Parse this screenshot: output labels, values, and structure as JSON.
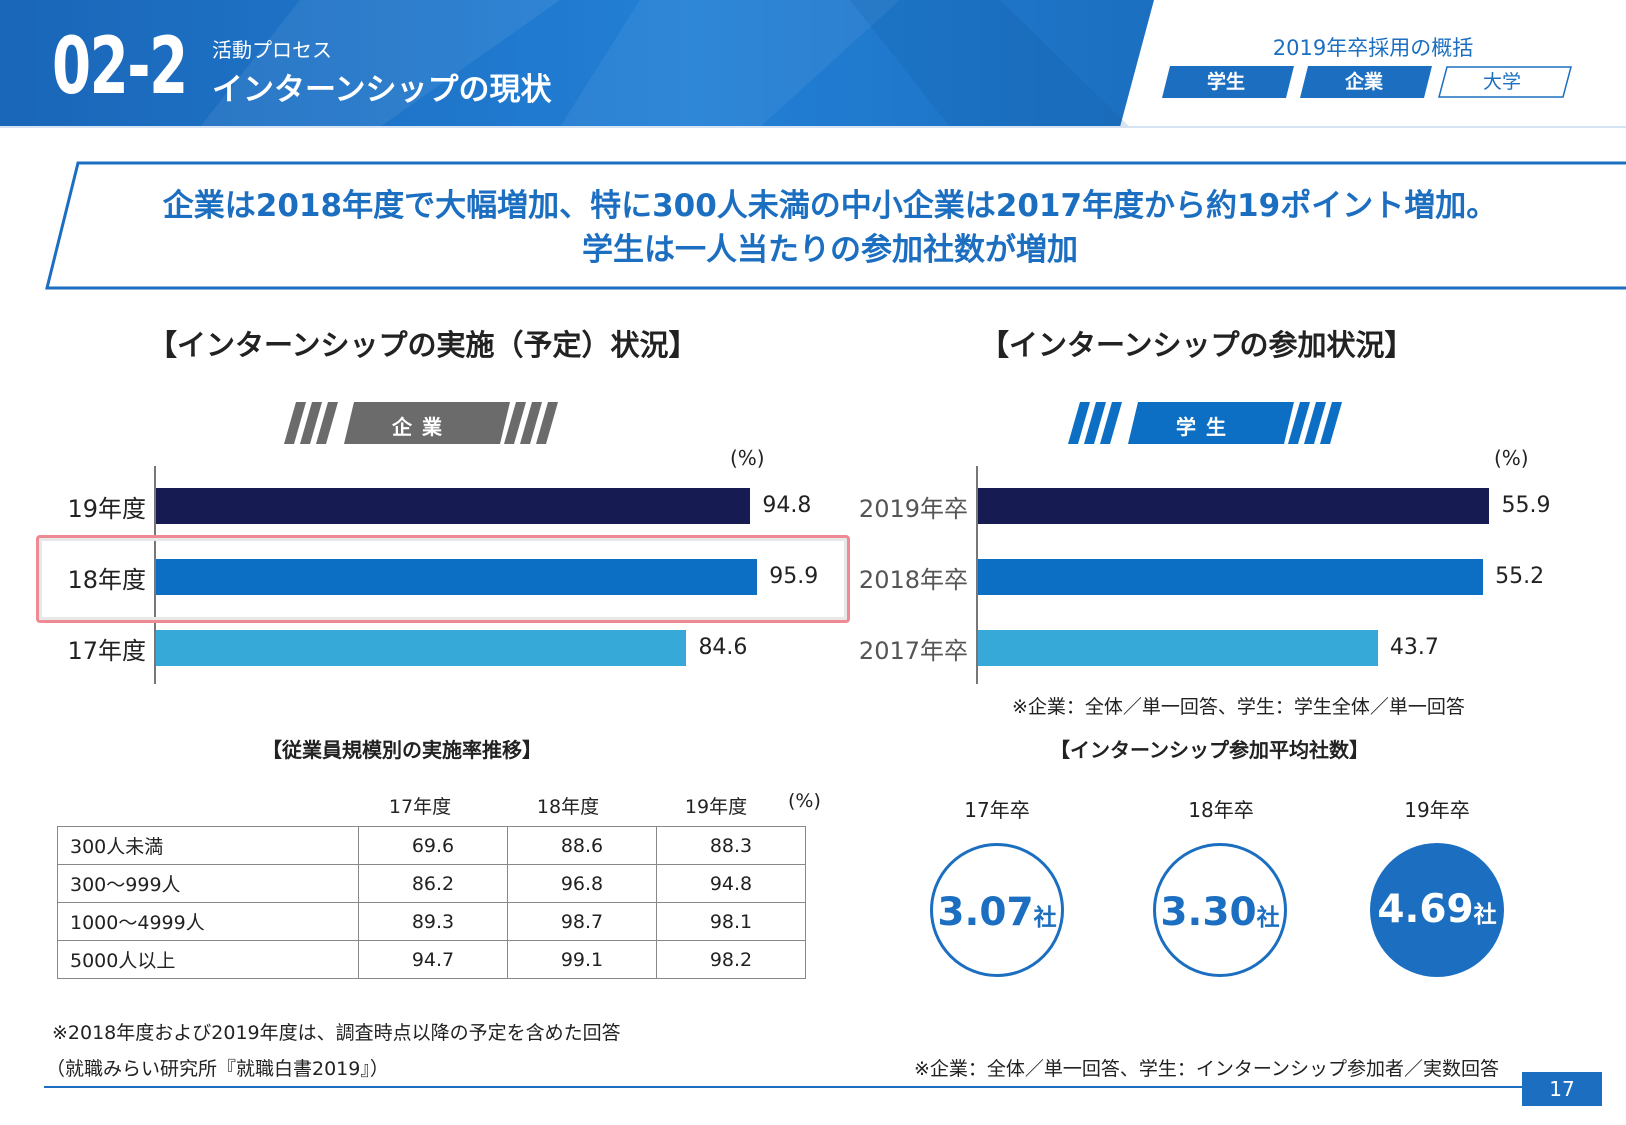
{
  "header": {
    "section_number": "02-2",
    "section_category": "活動プロセス",
    "section_title": "インターンシップの現状",
    "overview_title": "2019年卒採用の概括",
    "tabs": [
      {
        "label": "学生",
        "active": true
      },
      {
        "label": "企業",
        "active": true
      },
      {
        "label": "大学",
        "active": false
      }
    ]
  },
  "headline": {
    "line1": "企業は2018年度で大幅増加、特に300人未満の中小企業は2017年度から約19ポイント増加。",
    "line2": "学生は一人当たりの参加社数が増加"
  },
  "colors": {
    "brand": "#1c6fc0",
    "dark_navy": "#161c52",
    "mid_blue": "#0d6fc4",
    "light_blue": "#36a9d9",
    "highlight": "#ee8a94",
    "badge_gray": "#6b6b6b"
  },
  "chart_data": [
    {
      "type": "bar",
      "orientation": "horizontal",
      "title": "【インターンシップの実施（予定）状況】",
      "badge": "企業",
      "unit": "(%)",
      "categories": [
        "19年度",
        "18年度",
        "17年度"
      ],
      "values": [
        94.8,
        95.9,
        84.6
      ],
      "value_labels": [
        "94.8",
        "95.9",
        "84.6"
      ],
      "highlighted": "18年度",
      "xlim": [
        0,
        100
      ]
    },
    {
      "type": "bar",
      "orientation": "horizontal",
      "title": "【インターンシップの参加状況】",
      "badge": "学生",
      "unit": "(%)",
      "categories": [
        "2019年卒",
        "2018年卒",
        "2017年卒"
      ],
      "values": [
        55.9,
        55.2,
        43.7
      ],
      "value_labels": [
        "55.9",
        "55.2",
        "43.7"
      ],
      "xlim": [
        0,
        60
      ]
    },
    {
      "type": "table",
      "title": "【従業員規模別の実施率推移】",
      "unit": "(%)",
      "columns": [
        "17年度",
        "18年度",
        "19年度"
      ],
      "rows": [
        {
          "label": "300人未満",
          "values": [
            "69.6",
            "88.6",
            "88.3"
          ]
        },
        {
          "label": "300～999人",
          "values": [
            "86.2",
            "96.8",
            "94.8"
          ]
        },
        {
          "label": "1000～4999人",
          "values": [
            "89.3",
            "98.7",
            "98.1"
          ]
        },
        {
          "label": "5000人以上",
          "values": [
            "94.7",
            "99.1",
            "98.2"
          ]
        }
      ]
    },
    {
      "type": "table",
      "title": "【インターンシップ参加平均社数】",
      "items": [
        {
          "label": "17年卒",
          "value": "3.07",
          "suffix": "社",
          "filled": false
        },
        {
          "label": "18年卒",
          "value": "3.30",
          "suffix": "社",
          "filled": false
        },
        {
          "label": "19年卒",
          "value": "4.69",
          "suffix": "社",
          "filled": true
        }
      ]
    }
  ],
  "notes": {
    "chart_note": "※企業：全体／単一回答、学生：学生全体／単一回答",
    "footnote": "※2018年度および2019年度は、調査時点以降の予定を含めた回答",
    "source": "（就職みらい研究所『就職白書2019』）",
    "avg_note": "※企業：全体／単一回答、学生：インターンシップ参加者／実数回答"
  },
  "page_number": "17"
}
